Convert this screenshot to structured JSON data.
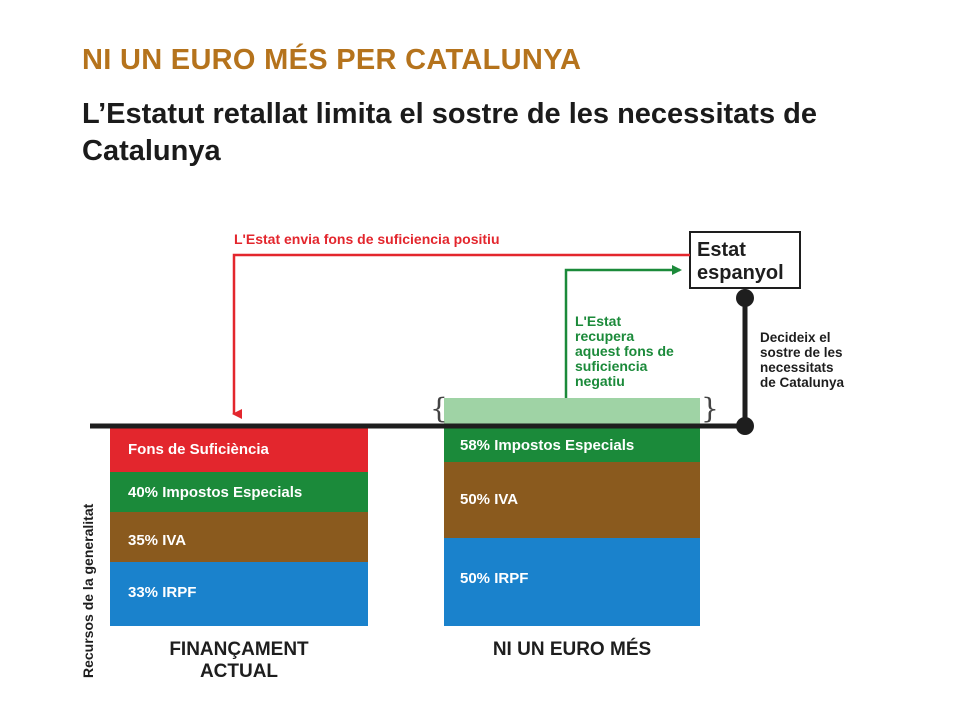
{
  "title": "NI UN EURO MÉS PER CATALUNYA",
  "subtitle": "L’Estatut retallat limita el sostre de les necessitats de Catalunya",
  "diagram": {
    "left_column": {
      "label_line1": "FINANÇAMENT",
      "label_line2": "ACTUAL",
      "segments": [
        {
          "label": "Fons de Suficiència",
          "color": "#e3262d"
        },
        {
          "label": "40% Impostos Especials",
          "color": "#1b8a3a"
        },
        {
          "label": "35% IVA",
          "color": "#8a5a1e"
        },
        {
          "label": "33% IRPF",
          "color": "#1a82cc"
        }
      ]
    },
    "right_column": {
      "label": "NI UN EURO MÉS",
      "excess_color": "#9fd3a5",
      "segments": [
        {
          "label": "58% Impostos Especials",
          "color": "#1b8a3a"
        },
        {
          "label": "50% IVA",
          "color": "#8a5a1e"
        },
        {
          "label": "50% IRPF",
          "color": "#1a82cc"
        }
      ]
    },
    "red_arrow_label": "L'Estat envia fons de  suficiencia positiu",
    "green_arrow_label": [
      "L'Estat",
      "recupera",
      "aquest fons de",
      "suficiencia",
      "negatiu"
    ],
    "state_box": [
      "Estat",
      "espanyol"
    ],
    "ceiling_label": [
      "Decideix el",
      "sostre de les",
      "necessitats",
      "de Catalunya"
    ],
    "y_axis_label": "Recursos de la generalitat",
    "colors": {
      "red": "#e3262d",
      "green": "#1b8a3a",
      "line": "#1e1e1e"
    }
  }
}
